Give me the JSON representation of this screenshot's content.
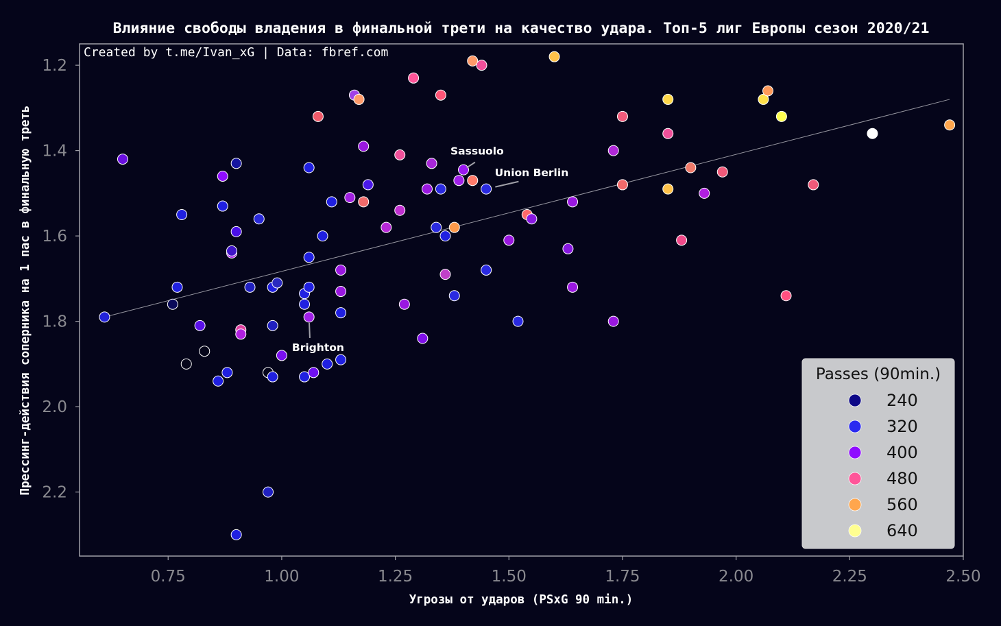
{
  "colors": {
    "background": "#05051a",
    "axes": "#a0a0a8",
    "tick_text": "#8a8a90",
    "text": "#ffffff",
    "trend": "#b0b0b8",
    "legend_bg": "#c8c9cc",
    "legend_text": "#111111"
  },
  "chart_data": {
    "type": "scatter",
    "title": "Влияние свободы владения в финальной трети на качество удара. Топ-5 лиг Европы сезон 2020/21",
    "credit": "Created by t.me/Ivan_xG | Data: fbref.com",
    "xlabel": "Угрозы от ударов (PSxG 90 min.)",
    "ylabel": "Прессинг-действия соперника на 1 пас в финальную треть",
    "xlim": [
      0.555,
      2.5
    ],
    "ylim": [
      2.35,
      1.15
    ],
    "y_inverted": true,
    "x_ticks": [
      0.75,
      1.0,
      1.25,
      1.5,
      1.75,
      2.0,
      2.25,
      2.5
    ],
    "x_tick_labels": [
      "0.75",
      "1.00",
      "1.25",
      "1.50",
      "1.75",
      "2.00",
      "2.25",
      "2.50"
    ],
    "y_ticks": [
      1.2,
      1.4,
      1.6,
      1.8,
      2.0,
      2.2
    ],
    "y_tick_labels": [
      "1.2",
      "1.4",
      "1.6",
      "1.8",
      "2.0",
      "2.2"
    ],
    "trendline": {
      "x": [
        0.61,
        2.47
      ],
      "y": [
        1.79,
        1.28
      ]
    },
    "color_variable": "Passes (90min.)",
    "legend": {
      "title": "Passes (90min.)",
      "entries": [
        {
          "label": "240",
          "color": "#0d0887"
        },
        {
          "label": "320",
          "color": "#2a2af0"
        },
        {
          "label": "400",
          "color": "#8f0dff"
        },
        {
          "label": "480",
          "color": "#ff5599"
        },
        {
          "label": "560",
          "color": "#ffa64d"
        },
        {
          "label": "640",
          "color": "#ffff90"
        }
      ]
    },
    "annotations": [
      {
        "text": "Sassuolo",
        "x": 1.4,
        "y": 1.445,
        "text_x": 1.43,
        "text_y": 1.4
      },
      {
        "text": "Union Berlin",
        "x": 1.45,
        "y": 1.49,
        "text_x": 1.55,
        "text_y": 1.45
      },
      {
        "text": "Brighton",
        "x": 1.06,
        "y": 1.79,
        "text_x": 1.08,
        "text_y": 1.86
      }
    ],
    "points": [
      {
        "x": 0.61,
        "y": 1.79,
        "c": "#2323d8"
      },
      {
        "x": 0.65,
        "y": 1.42,
        "c": "#6a0fe0"
      },
      {
        "x": 0.76,
        "y": 1.76,
        "c": "#0a0a5a"
      },
      {
        "x": 0.77,
        "y": 1.72,
        "c": "#2020e0"
      },
      {
        "x": 0.78,
        "y": 1.55,
        "c": "#2020e0"
      },
      {
        "x": 0.79,
        "y": 1.9,
        "c": "#05051a"
      },
      {
        "x": 0.82,
        "y": 1.81,
        "c": "#5a10e8"
      },
      {
        "x": 0.83,
        "y": 1.87,
        "c": "#05051a"
      },
      {
        "x": 0.86,
        "y": 1.94,
        "c": "#2020e0"
      },
      {
        "x": 0.87,
        "y": 1.46,
        "c": "#8f0dff"
      },
      {
        "x": 0.87,
        "y": 1.53,
        "c": "#2020e0"
      },
      {
        "x": 0.88,
        "y": 1.92,
        "c": "#2020e0"
      },
      {
        "x": 0.89,
        "y": 1.64,
        "c": "#a51ae8"
      },
      {
        "x": 0.89,
        "y": 1.635,
        "c": "#4015c8"
      },
      {
        "x": 0.9,
        "y": 1.43,
        "c": "#1515a0"
      },
      {
        "x": 0.9,
        "y": 1.59,
        "c": "#4a10e8"
      },
      {
        "x": 0.9,
        "y": 2.3,
        "c": "#2020e0"
      },
      {
        "x": 0.91,
        "y": 1.82,
        "c": "#e040a0"
      },
      {
        "x": 0.91,
        "y": 1.83,
        "c": "#b020e0"
      },
      {
        "x": 0.93,
        "y": 1.72,
        "c": "#2020c0"
      },
      {
        "x": 0.95,
        "y": 1.56,
        "c": "#2a2ad8"
      },
      {
        "x": 0.97,
        "y": 1.92,
        "c": "#05051a"
      },
      {
        "x": 0.97,
        "y": 2.2,
        "c": "#2020c0"
      },
      {
        "x": 0.98,
        "y": 1.72,
        "c": "#2020e0"
      },
      {
        "x": 0.98,
        "y": 1.81,
        "c": "#2020c0"
      },
      {
        "x": 0.98,
        "y": 1.93,
        "c": "#2020e0"
      },
      {
        "x": 0.99,
        "y": 1.71,
        "c": "#2a2ac0"
      },
      {
        "x": 1.0,
        "y": 1.88,
        "c": "#7a10f0"
      },
      {
        "x": 1.05,
        "y": 1.735,
        "c": "#2020e0"
      },
      {
        "x": 1.05,
        "y": 1.76,
        "c": "#2020e0"
      },
      {
        "x": 1.05,
        "y": 1.93,
        "c": "#2020e0"
      },
      {
        "x": 1.06,
        "y": 1.44,
        "c": "#2020e0"
      },
      {
        "x": 1.06,
        "y": 1.65,
        "c": "#2020e0"
      },
      {
        "x": 1.06,
        "y": 1.72,
        "c": "#2020e0"
      },
      {
        "x": 1.06,
        "y": 1.79,
        "c": "#a020e8"
      },
      {
        "x": 1.07,
        "y": 1.92,
        "c": "#7010f0"
      },
      {
        "x": 1.08,
        "y": 1.32,
        "c": "#f05a6a"
      },
      {
        "x": 1.09,
        "y": 1.6,
        "c": "#2020e0"
      },
      {
        "x": 1.1,
        "y": 1.9,
        "c": "#2020e0"
      },
      {
        "x": 1.11,
        "y": 1.52,
        "c": "#2020e0"
      },
      {
        "x": 1.13,
        "y": 1.68,
        "c": "#9a18e0"
      },
      {
        "x": 1.13,
        "y": 1.73,
        "c": "#9a18e0"
      },
      {
        "x": 1.13,
        "y": 1.78,
        "c": "#2020e0"
      },
      {
        "x": 1.13,
        "y": 1.89,
        "c": "#2020e0"
      },
      {
        "x": 1.15,
        "y": 1.51,
        "c": "#a020e0"
      },
      {
        "x": 1.16,
        "y": 1.27,
        "c": "#a040e8"
      },
      {
        "x": 1.17,
        "y": 1.28,
        "c": "#ff9a6a"
      },
      {
        "x": 1.18,
        "y": 1.39,
        "c": "#9a18e0"
      },
      {
        "x": 1.18,
        "y": 1.52,
        "c": "#f06a6a"
      },
      {
        "x": 1.19,
        "y": 1.48,
        "c": "#4a18e8"
      },
      {
        "x": 1.23,
        "y": 1.58,
        "c": "#b828d8"
      },
      {
        "x": 1.26,
        "y": 1.41,
        "c": "#f0509a"
      },
      {
        "x": 1.26,
        "y": 1.54,
        "c": "#c030d0"
      },
      {
        "x": 1.27,
        "y": 1.76,
        "c": "#9a18e0"
      },
      {
        "x": 1.29,
        "y": 1.23,
        "c": "#ff5599"
      },
      {
        "x": 1.31,
        "y": 1.84,
        "c": "#8010e8"
      },
      {
        "x": 1.32,
        "y": 1.49,
        "c": "#9a18e0"
      },
      {
        "x": 1.33,
        "y": 1.43,
        "c": "#a828d8"
      },
      {
        "x": 1.34,
        "y": 1.58,
        "c": "#2a2ae0"
      },
      {
        "x": 1.35,
        "y": 1.27,
        "c": "#ff5577"
      },
      {
        "x": 1.35,
        "y": 1.49,
        "c": "#2a2ae0"
      },
      {
        "x": 1.36,
        "y": 1.6,
        "c": "#2020e0"
      },
      {
        "x": 1.36,
        "y": 1.69,
        "c": "#c040c8"
      },
      {
        "x": 1.38,
        "y": 1.58,
        "c": "#ff9a4a"
      },
      {
        "x": 1.38,
        "y": 1.74,
        "c": "#2a2ae0"
      },
      {
        "x": 1.39,
        "y": 1.47,
        "c": "#a020e8"
      },
      {
        "x": 1.4,
        "y": 1.445,
        "c": "#9a18f0"
      },
      {
        "x": 1.42,
        "y": 1.19,
        "c": "#ff9a6a"
      },
      {
        "x": 1.42,
        "y": 1.47,
        "c": "#ff7a6a"
      },
      {
        "x": 1.44,
        "y": 1.2,
        "c": "#f0509a"
      },
      {
        "x": 1.45,
        "y": 1.49,
        "c": "#2a2ae0"
      },
      {
        "x": 1.45,
        "y": 1.68,
        "c": "#2a2ae0"
      },
      {
        "x": 1.5,
        "y": 1.61,
        "c": "#9a18e0"
      },
      {
        "x": 1.52,
        "y": 1.8,
        "c": "#2a2ae0"
      },
      {
        "x": 1.54,
        "y": 1.55,
        "c": "#ff6a6a"
      },
      {
        "x": 1.55,
        "y": 1.56,
        "c": "#8818e0"
      },
      {
        "x": 1.6,
        "y": 1.18,
        "c": "#ffc24a"
      },
      {
        "x": 1.63,
        "y": 1.63,
        "c": "#8818e0"
      },
      {
        "x": 1.64,
        "y": 1.52,
        "c": "#9a18e0"
      },
      {
        "x": 1.64,
        "y": 1.72,
        "c": "#9a18e0"
      },
      {
        "x": 1.73,
        "y": 1.4,
        "c": "#b028d8"
      },
      {
        "x": 1.73,
        "y": 1.8,
        "c": "#9a18e0"
      },
      {
        "x": 1.75,
        "y": 1.32,
        "c": "#f05a7a"
      },
      {
        "x": 1.75,
        "y": 1.48,
        "c": "#f06a6a"
      },
      {
        "x": 1.85,
        "y": 1.28,
        "c": "#ffd84a"
      },
      {
        "x": 1.85,
        "y": 1.36,
        "c": "#f0509a"
      },
      {
        "x": 1.85,
        "y": 1.49,
        "c": "#ffc24a"
      },
      {
        "x": 1.88,
        "y": 1.61,
        "c": "#f04a8a"
      },
      {
        "x": 1.9,
        "y": 1.44,
        "c": "#f07a6a"
      },
      {
        "x": 1.93,
        "y": 1.5,
        "c": "#b020e0"
      },
      {
        "x": 1.97,
        "y": 1.45,
        "c": "#f05a7a"
      },
      {
        "x": 2.06,
        "y": 1.28,
        "c": "#ffe04a"
      },
      {
        "x": 2.07,
        "y": 1.26,
        "c": "#ff9a5a"
      },
      {
        "x": 2.1,
        "y": 1.32,
        "c": "#ffff50"
      },
      {
        "x": 2.11,
        "y": 1.74,
        "c": "#ff5080"
      },
      {
        "x": 2.17,
        "y": 1.48,
        "c": "#f05a7a"
      },
      {
        "x": 2.3,
        "y": 1.36,
        "c": "#ffffff"
      },
      {
        "x": 2.47,
        "y": 1.34,
        "c": "#ffa64d"
      }
    ]
  }
}
